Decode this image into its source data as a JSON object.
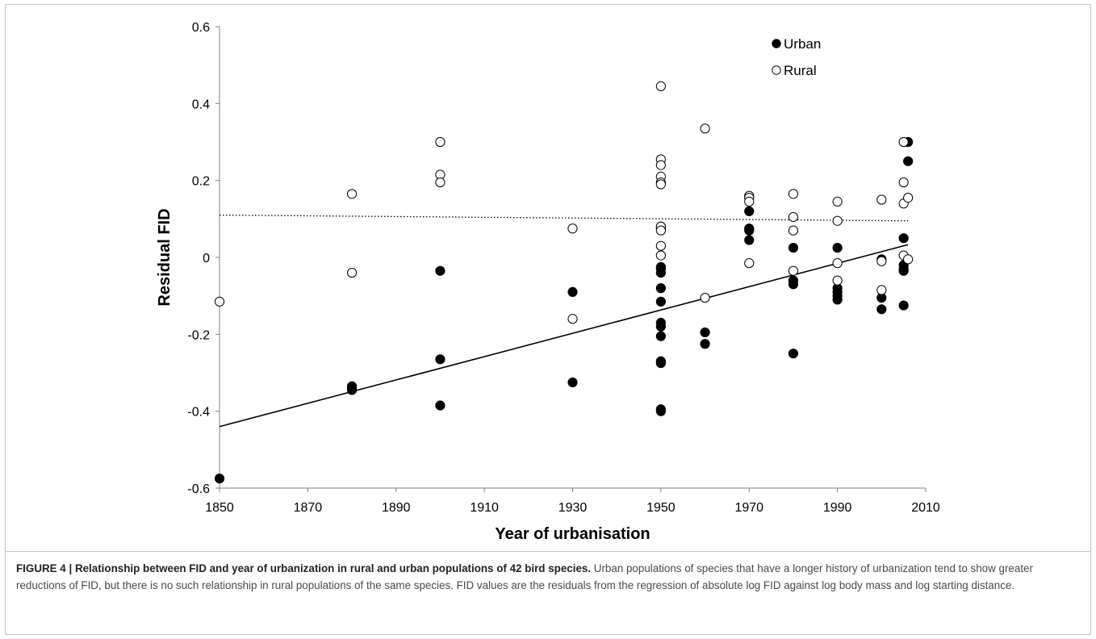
{
  "chart_data": {
    "type": "scatter",
    "xlabel": "Year of urbanisation",
    "ylabel": "Residual FID",
    "xlim": [
      1850,
      2010
    ],
    "ylim": [
      -0.6,
      0.6
    ],
    "xticks": [
      "1850",
      "1870",
      "1890",
      "1910",
      "1930",
      "1950",
      "1970",
      "1990",
      "2010"
    ],
    "yticks": [
      "-0.6",
      "-0.4",
      "-0.2",
      "0",
      "0.2",
      "0.4",
      "0.6"
    ],
    "legend_position": "top-right",
    "series": [
      {
        "name": "Urban",
        "marker": "filled-circle",
        "color": "#000000",
        "points": [
          [
            1850,
            -0.575
          ],
          [
            1880,
            -0.335
          ],
          [
            1880,
            -0.34
          ],
          [
            1880,
            -0.345
          ],
          [
            1900,
            -0.035
          ],
          [
            1900,
            -0.265
          ],
          [
            1900,
            -0.385
          ],
          [
            1930,
            -0.09
          ],
          [
            1930,
            -0.325
          ],
          [
            1950,
            0.08
          ],
          [
            1950,
            0.075
          ],
          [
            1950,
            -0.025
          ],
          [
            1950,
            -0.03
          ],
          [
            1950,
            -0.04
          ],
          [
            1950,
            -0.08
          ],
          [
            1950,
            -0.115
          ],
          [
            1950,
            -0.17
          ],
          [
            1950,
            -0.18
          ],
          [
            1950,
            -0.205
          ],
          [
            1950,
            -0.27
          ],
          [
            1950,
            -0.275
          ],
          [
            1950,
            -0.395
          ],
          [
            1950,
            -0.4
          ],
          [
            1960,
            -0.195
          ],
          [
            1960,
            -0.225
          ],
          [
            1970,
            0.12
          ],
          [
            1970,
            0.075
          ],
          [
            1970,
            0.07
          ],
          [
            1970,
            0.045
          ],
          [
            1980,
            0.025
          ],
          [
            1980,
            -0.06
          ],
          [
            1980,
            -0.07
          ],
          [
            1980,
            -0.25
          ],
          [
            1990,
            0.025
          ],
          [
            1990,
            -0.08
          ],
          [
            1990,
            -0.09
          ],
          [
            1990,
            -0.1
          ],
          [
            1990,
            -0.11
          ],
          [
            2000,
            -0.005
          ],
          [
            2000,
            -0.105
          ],
          [
            2000,
            -0.135
          ],
          [
            2005,
            0.05
          ],
          [
            2005,
            -0.02
          ],
          [
            2005,
            -0.03
          ],
          [
            2005,
            -0.035
          ],
          [
            2005,
            -0.125
          ],
          [
            2006,
            0.3
          ],
          [
            2006,
            0.25
          ]
        ]
      },
      {
        "name": "Rural",
        "marker": "open-circle",
        "color": "#000000",
        "points": [
          [
            1850,
            -0.115
          ],
          [
            1880,
            0.165
          ],
          [
            1880,
            -0.04
          ],
          [
            1900,
            0.3
          ],
          [
            1900,
            0.215
          ],
          [
            1900,
            0.195
          ],
          [
            1930,
            0.075
          ],
          [
            1930,
            -0.16
          ],
          [
            1950,
            0.445
          ],
          [
            1950,
            0.255
          ],
          [
            1950,
            0.24
          ],
          [
            1950,
            0.21
          ],
          [
            1950,
            0.195
          ],
          [
            1950,
            0.19
          ],
          [
            1950,
            0.08
          ],
          [
            1950,
            0.07
          ],
          [
            1950,
            0.03
          ],
          [
            1950,
            0.005
          ],
          [
            1960,
            0.335
          ],
          [
            1960,
            -0.105
          ],
          [
            1970,
            0.16
          ],
          [
            1970,
            0.155
          ],
          [
            1970,
            0.145
          ],
          [
            1970,
            -0.015
          ],
          [
            1980,
            0.165
          ],
          [
            1980,
            0.105
          ],
          [
            1980,
            0.07
          ],
          [
            1980,
            -0.035
          ],
          [
            1990,
            0.145
          ],
          [
            1990,
            0.095
          ],
          [
            1990,
            -0.015
          ],
          [
            1990,
            -0.06
          ],
          [
            2000,
            0.15
          ],
          [
            2000,
            -0.01
          ],
          [
            2000,
            -0.085
          ],
          [
            2005,
            0.3
          ],
          [
            2005,
            0.195
          ],
          [
            2005,
            0.14
          ],
          [
            2005,
            0.005
          ],
          [
            2006,
            0.155
          ],
          [
            2006,
            -0.005
          ]
        ]
      }
    ],
    "trendlines": [
      {
        "series": "Urban",
        "style": "solid",
        "x": [
          1850,
          2006
        ],
        "y": [
          -0.44,
          0.033
        ]
      },
      {
        "series": "Rural",
        "style": "dotted",
        "x": [
          1850,
          2006
        ],
        "y": [
          0.11,
          0.095
        ]
      }
    ]
  },
  "caption": {
    "bold": "FIGURE 4 | Relationship between FID and year of urbanization in rural and urban populations of 42 bird species.",
    "text": " Urban populations of species that have a longer history of urbanization tend to show greater reductions of FID, but there is no such relationship in rural populations of the same species. FID values are the residuals from the regression of absolute log FID against log body mass and log starting distance."
  }
}
